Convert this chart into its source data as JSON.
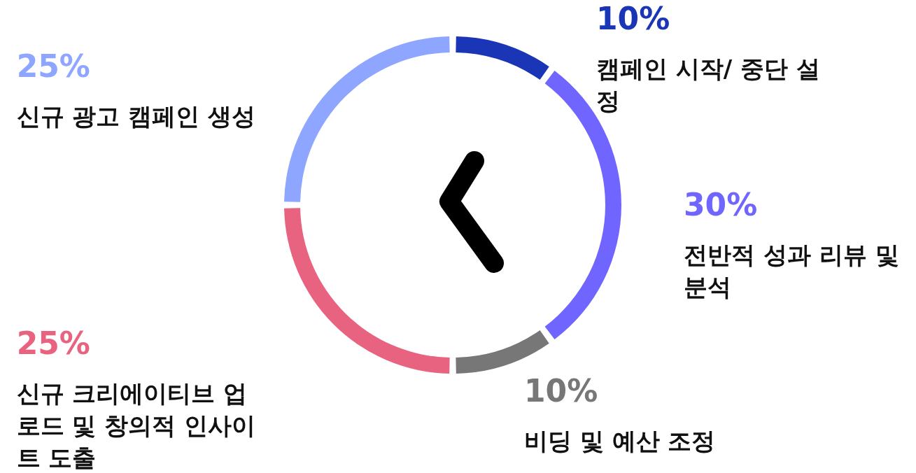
{
  "chart_data": {
    "type": "donut",
    "categories": [
      "캠페인 시작/ 중단 설정",
      "전반적 성과 리뷰 및 분석",
      "비딩 및 예산 조정",
      "신규 크리에이티브 업로드 및 창의적 인사이트 도출",
      "신규 광고 캠페인 생성"
    ],
    "values": [
      10,
      30,
      10,
      25,
      25
    ],
    "colors": [
      "#1a35b5",
      "#7065ff",
      "#777777",
      "#e8637f",
      "#8ea6ff"
    ],
    "value_labels": [
      "10%",
      "30%",
      "10%",
      "25%",
      "25%"
    ]
  }
}
